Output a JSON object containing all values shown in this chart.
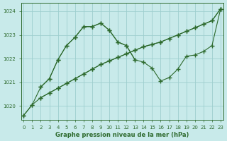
{
  "title": "Graphe pression niveau de la mer (hPa)",
  "bg_color": "#c8eaea",
  "line_color": "#2d6a2d",
  "grid_color": "#9ecece",
  "ylim": [
    1019.4,
    1024.35
  ],
  "xlim": [
    -0.3,
    23.3
  ],
  "yticks": [
    1020,
    1021,
    1022,
    1023,
    1024
  ],
  "xticks": [
    0,
    1,
    2,
    3,
    4,
    5,
    6,
    7,
    8,
    9,
    10,
    11,
    12,
    13,
    14,
    15,
    16,
    17,
    18,
    19,
    20,
    21,
    22,
    23
  ],
  "line1_x": [
    0,
    1,
    2,
    3,
    4,
    5,
    6,
    7,
    8,
    9,
    10,
    11,
    12,
    13,
    14,
    15,
    16,
    17,
    18,
    19,
    20,
    21,
    22,
    23
  ],
  "line1_y": [
    1019.6,
    1020.05,
    1020.35,
    1020.55,
    1020.75,
    1020.95,
    1021.15,
    1021.35,
    1021.55,
    1021.75,
    1021.9,
    1022.05,
    1022.2,
    1022.35,
    1022.5,
    1022.6,
    1022.7,
    1022.85,
    1023.0,
    1023.15,
    1023.3,
    1023.45,
    1023.6,
    1024.1
  ],
  "line2_x": [
    0,
    1,
    2,
    3,
    4,
    5,
    6,
    7,
    8,
    9,
    10,
    11,
    12,
    13,
    14,
    15,
    16,
    17,
    18,
    19,
    20,
    21,
    22,
    23
  ],
  "line2_y": [
    1019.6,
    1020.05,
    1020.8,
    1021.15,
    1021.95,
    1022.55,
    1022.9,
    1023.35,
    1023.35,
    1023.5,
    1023.2,
    1022.7,
    1022.55,
    1021.95,
    1021.85,
    1021.6,
    1021.05,
    1021.2,
    1021.55,
    1022.1,
    1022.15,
    1022.3,
    1022.55,
    1024.1
  ],
  "line3_x": [
    2,
    3,
    4,
    5,
    6,
    7,
    8,
    9,
    10,
    11,
    12,
    13
  ],
  "line3_y": [
    1020.8,
    1021.15,
    1021.95,
    1022.55,
    1022.9,
    1023.35,
    1023.35,
    1023.5,
    1023.2,
    1022.7,
    1022.55,
    1021.95
  ],
  "line4_x": [
    2,
    3,
    4,
    5,
    6,
    7,
    8,
    9,
    10,
    11,
    12,
    13,
    14,
    15,
    16,
    17,
    18,
    19,
    20,
    21,
    22,
    23
  ],
  "line4_y": [
    1020.35,
    1020.55,
    1020.75,
    1020.95,
    1021.15,
    1021.35,
    1021.55,
    1021.75,
    1021.9,
    1022.05,
    1022.2,
    1022.35,
    1022.5,
    1022.6,
    1022.7,
    1022.85,
    1023.0,
    1023.15,
    1023.3,
    1023.45,
    1023.6,
    1024.1
  ]
}
